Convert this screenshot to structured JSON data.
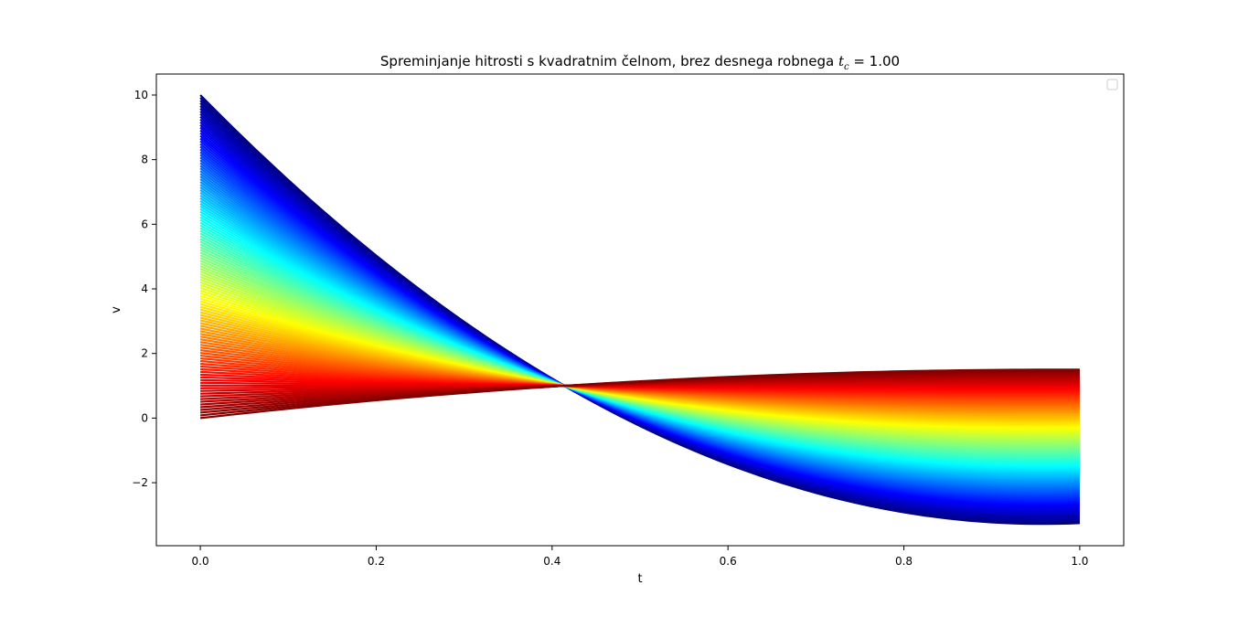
{
  "chart_data": {
    "type": "line",
    "title": "Spreminjanje hitrosti s kvadratnim čelnom, brez desnega robnega ",
    "title_math": "t",
    "title_math_sub": "c",
    "title_math_tail": " = 1.00",
    "xlabel": "t",
    "ylabel": "v",
    "xlim": [
      -0.05,
      1.05
    ],
    "ylim": [
      -3.95,
      10.65
    ],
    "xticks": [
      0.0,
      0.2,
      0.4,
      0.6,
      0.8,
      1.0
    ],
    "xtick_labels": [
      "0.0",
      "0.2",
      "0.4",
      "0.6",
      "0.8",
      "1.0"
    ],
    "yticks": [
      -2,
      0,
      2,
      4,
      6,
      8,
      10
    ],
    "ytick_labels": [
      "−2",
      "0",
      "2",
      "4",
      "6",
      "8",
      "10"
    ],
    "grid": false,
    "legend": "top-right, empty",
    "colormap": "jet",
    "series_family": {
      "description_in_data_units": "v(t) = v0 + (2 - 2*v0)*t + (v0 - 1)*t^2 ... family of quadratic curves parameterised by start value v0",
      "v0_start": 10.0,
      "v0_end": 0.0,
      "v_end_range": [
        -3.25,
        1.5
      ],
      "crossing_point": [
        0.414,
        1.0
      ],
      "curve_count": 120
    }
  }
}
